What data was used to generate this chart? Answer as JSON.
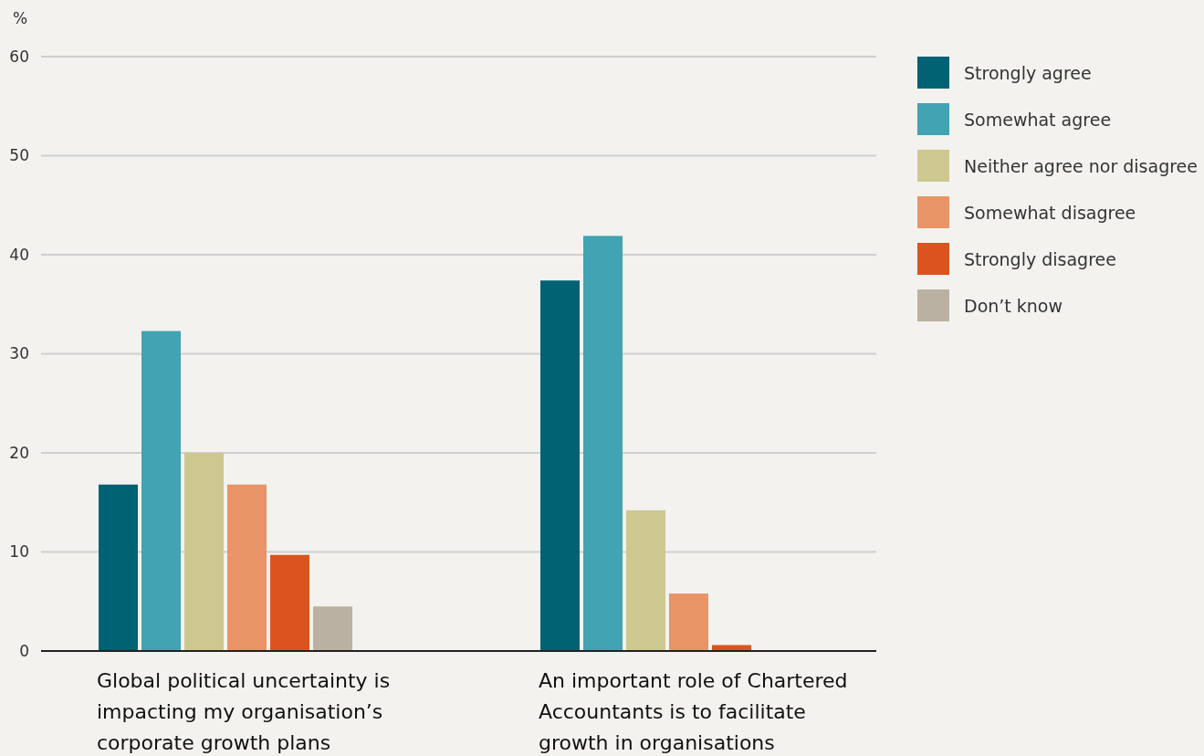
{
  "chart_data": {
    "type": "bar",
    "ylabel": "%",
    "categories": [
      "Global political uncertainty is impacting my organisation’s corporate growth plans",
      "An important role of Chartered Accountants is to facilitate growth in organisations"
    ],
    "series": [
      {
        "name": "Strongly agree",
        "color": "#006272",
        "values": [
          16.8,
          37.4
        ]
      },
      {
        "name": "Somewhat agree",
        "color": "#42a3b3",
        "values": [
          32.3,
          41.9
        ]
      },
      {
        "name": "Neither agree nor disagree",
        "color": "#cdc890",
        "values": [
          20.0,
          14.2
        ]
      },
      {
        "name": "Somewhat disagree",
        "color": "#e89466",
        "values": [
          16.8,
          5.8
        ]
      },
      {
        "name": "Strongly disagree",
        "color": "#db5420",
        "values": [
          9.7,
          0.6
        ]
      },
      {
        "name": "Don’t know",
        "color": "#bab1a2",
        "values": [
          4.5,
          null
        ]
      }
    ],
    "ylim": [
      0,
      60
    ],
    "yticks": [
      0,
      10,
      20,
      30,
      40,
      50,
      60
    ],
    "grid": "y",
    "legend": "right"
  }
}
